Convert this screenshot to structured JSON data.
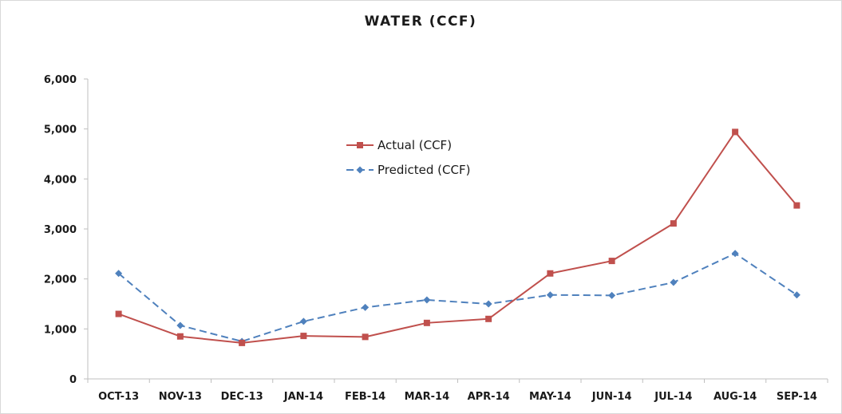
{
  "chart_data": {
    "type": "line",
    "title": "WATER (CCF)",
    "categories": [
      "OCT-13",
      "NOV-13",
      "DEC-13",
      "JAN-14",
      "FEB-14",
      "MAR-14",
      "APR-14",
      "MAY-14",
      "JUN-14",
      "JUL-14",
      "AUG-14",
      "SEP-14"
    ],
    "ylim": [
      0,
      6000
    ],
    "yticks": [
      0,
      1000,
      2000,
      3000,
      4000,
      5000,
      6000
    ],
    "ytick_labels": [
      "0",
      "1,000",
      "2,000",
      "3,000",
      "4,000",
      "5,000",
      "6,000"
    ],
    "grid": false,
    "legend_position": "center-inside",
    "series": [
      {
        "name": "Actual (CCF)",
        "color": "#c0504d",
        "marker": "square",
        "line_style": "solid",
        "values": [
          1300,
          850,
          720,
          860,
          840,
          1120,
          1200,
          2110,
          2360,
          3110,
          4940,
          3470
        ]
      },
      {
        "name": "Predicted (CCF)",
        "color": "#4f81bd",
        "marker": "diamond",
        "line_style": "dashed",
        "values": [
          2110,
          1070,
          750,
          1150,
          1430,
          1580,
          1500,
          1680,
          1670,
          1930,
          2510,
          1680
        ]
      }
    ]
  }
}
